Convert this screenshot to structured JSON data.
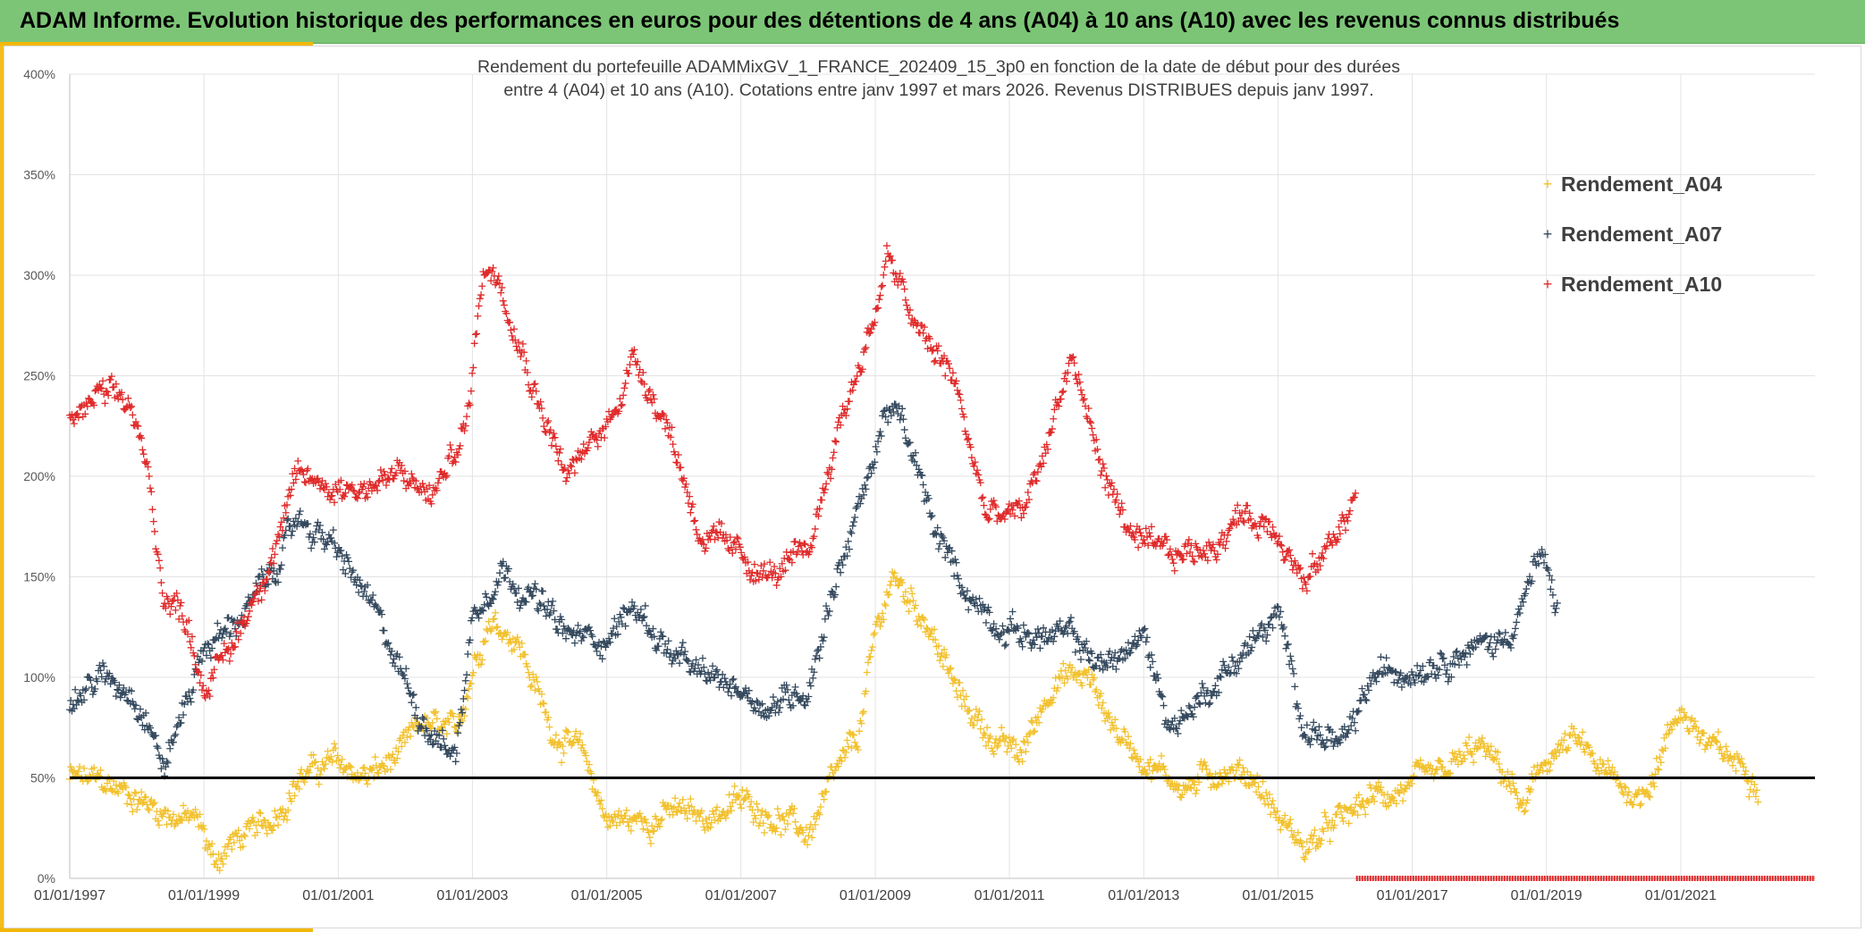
{
  "page": {
    "title": "ADAM Informe. Evolution historique des performances en euros pour des détentions de 4 ans (A04) à 10 ans (A10) avec les revenus connus distribués"
  },
  "chart_data": {
    "type": "scatter",
    "subtitle_line1": "Rendement du portefeuille ADAMMixGV_1_FRANCE_202409_15_3p0  en fonction de la date de début pour des durées",
    "subtitle_line2": "entre 4 (A04) et 10 ans (A10). Cotations entre janv 1997 et mars 2026. Revenus DISTRIBUES depuis janv 1997.",
    "x_axis": {
      "type": "date",
      "min": "1997-01-01",
      "max": "2023-01-01",
      "tick_labels": [
        "01/01/1997",
        "01/01/1999",
        "01/01/2001",
        "01/01/2003",
        "01/01/2005",
        "01/01/2007",
        "01/01/2009",
        "01/01/2011",
        "01/01/2013",
        "01/01/2015",
        "01/01/2017",
        "01/01/2019",
        "01/01/2021"
      ],
      "tick_dates": [
        "1997-01-01",
        "1999-01-01",
        "2001-01-01",
        "2003-01-01",
        "2005-01-01",
        "2007-01-01",
        "2009-01-01",
        "2011-01-01",
        "2013-01-01",
        "2015-01-01",
        "2017-01-01",
        "2019-01-01",
        "2021-01-01"
      ]
    },
    "y_axis": {
      "min": 0,
      "max": 400,
      "unit": "%",
      "tick_values": [
        0,
        50,
        100,
        150,
        200,
        250,
        300,
        350,
        400
      ],
      "tick_labels": [
        "0%",
        "50%",
        "100%",
        "150%",
        "200%",
        "250%",
        "300%",
        "350%",
        "400%"
      ]
    },
    "reference_line": {
      "y": 50,
      "color": "#000000"
    },
    "marker_band": {
      "y": 0,
      "x_start": "2016-03-01",
      "x_end": "2023-01-01",
      "color": "#E02020"
    },
    "grid": true,
    "legend_position": "top-right",
    "series": [
      {
        "name": "Rendement_A04",
        "color": "#F2C12E",
        "end": "2022-03-01",
        "points": [
          [
            "1997-01-01",
            50
          ],
          [
            "1997-06-01",
            48
          ],
          [
            "1997-12-01",
            42
          ],
          [
            "1998-06-01",
            33
          ],
          [
            "1998-12-01",
            28
          ],
          [
            "1999-03-01",
            8
          ],
          [
            "1999-06-01",
            18
          ],
          [
            "1999-12-01",
            25
          ],
          [
            "2000-06-01",
            50
          ],
          [
            "2000-12-01",
            58
          ],
          [
            "2001-06-01",
            50
          ],
          [
            "2001-12-01",
            60
          ],
          [
            "2002-04-01",
            77
          ],
          [
            "2002-10-01",
            70
          ],
          [
            "2003-01-01",
            105
          ],
          [
            "2003-04-01",
            130
          ],
          [
            "2003-09-01",
            120
          ],
          [
            "2004-03-01",
            75
          ],
          [
            "2004-09-01",
            60
          ],
          [
            "2005-01-01",
            30
          ],
          [
            "2005-06-01",
            28
          ],
          [
            "2006-01-01",
            33
          ],
          [
            "2006-06-01",
            30
          ],
          [
            "2007-01-01",
            38
          ],
          [
            "2007-06-01",
            33
          ],
          [
            "2008-01-01",
            22
          ],
          [
            "2008-06-01",
            50
          ],
          [
            "2008-10-01",
            70
          ],
          [
            "2009-01-01",
            120
          ],
          [
            "2009-04-01",
            150
          ],
          [
            "2009-10-01",
            130
          ],
          [
            "2010-04-01",
            90
          ],
          [
            "2010-10-01",
            70
          ],
          [
            "2011-03-01",
            60
          ],
          [
            "2011-09-01",
            100
          ],
          [
            "2012-03-01",
            100
          ],
          [
            "2012-09-01",
            70
          ],
          [
            "2013-03-01",
            55
          ],
          [
            "2013-09-01",
            45
          ],
          [
            "2014-03-01",
            55
          ],
          [
            "2014-09-01",
            50
          ],
          [
            "2015-01-01",
            30
          ],
          [
            "2015-06-01",
            15
          ],
          [
            "2016-01-01",
            30
          ],
          [
            "2016-06-01",
            40
          ],
          [
            "2017-01-01",
            45
          ],
          [
            "2017-06-01",
            50
          ],
          [
            "2018-01-01",
            65
          ],
          [
            "2018-06-01",
            50
          ],
          [
            "2018-09-01",
            33
          ],
          [
            "2019-01-01",
            60
          ],
          [
            "2019-06-01",
            68
          ],
          [
            "2019-12-01",
            50
          ],
          [
            "2020-06-01",
            40
          ],
          [
            "2021-01-01",
            85
          ],
          [
            "2021-06-01",
            65
          ],
          [
            "2022-01-01",
            55
          ],
          [
            "2022-03-01",
            50
          ]
        ]
      },
      {
        "name": "Rendement_A07",
        "color": "#34495E",
        "end": "2019-03-01",
        "points": [
          [
            "1997-01-01",
            85
          ],
          [
            "1997-06-01",
            100
          ],
          [
            "1997-12-01",
            95
          ],
          [
            "1998-03-01",
            80
          ],
          [
            "1998-06-01",
            55
          ],
          [
            "1998-10-01",
            90
          ],
          [
            "1999-01-01",
            115
          ],
          [
            "1999-06-01",
            125
          ],
          [
            "2000-01-01",
            150
          ],
          [
            "2000-06-01",
            180
          ],
          [
            "2000-12-01",
            165
          ],
          [
            "2001-06-01",
            140
          ],
          [
            "2001-12-01",
            105
          ],
          [
            "2002-04-01",
            80
          ],
          [
            "2002-10-01",
            60
          ],
          [
            "2003-01-01",
            130
          ],
          [
            "2003-06-01",
            155
          ],
          [
            "2003-12-01",
            140
          ],
          [
            "2004-06-01",
            120
          ],
          [
            "2005-01-01",
            120
          ],
          [
            "2005-06-01",
            135
          ],
          [
            "2006-01-01",
            110
          ],
          [
            "2006-06-01",
            100
          ],
          [
            "2007-01-01",
            95
          ],
          [
            "2007-06-01",
            85
          ],
          [
            "2008-01-01",
            95
          ],
          [
            "2008-06-01",
            150
          ],
          [
            "2008-12-01",
            200
          ],
          [
            "2009-03-01",
            235
          ],
          [
            "2009-06-01",
            225
          ],
          [
            "2009-12-01",
            170
          ],
          [
            "2010-06-01",
            140
          ],
          [
            "2010-12-01",
            125
          ],
          [
            "2011-06-01",
            120
          ],
          [
            "2011-12-01",
            120
          ],
          [
            "2012-06-01",
            105
          ],
          [
            "2013-01-01",
            120
          ],
          [
            "2013-06-01",
            75
          ],
          [
            "2014-01-01",
            95
          ],
          [
            "2014-06-01",
            110
          ],
          [
            "2015-01-01",
            130
          ],
          [
            "2015-06-01",
            75
          ],
          [
            "2016-01-01",
            65
          ],
          [
            "2016-06-01",
            100
          ],
          [
            "2017-01-01",
            105
          ],
          [
            "2017-06-01",
            110
          ],
          [
            "2018-01-01",
            115
          ],
          [
            "2018-06-01",
            120
          ],
          [
            "2018-12-01",
            160
          ],
          [
            "2019-03-01",
            135
          ]
        ]
      },
      {
        "name": "Rendement_A10",
        "color": "#E02A2A",
        "end": "2016-03-01",
        "points": [
          [
            "1997-01-01",
            225
          ],
          [
            "1997-06-01",
            240
          ],
          [
            "1997-12-01",
            235
          ],
          [
            "1998-03-01",
            200
          ],
          [
            "1998-06-01",
            140
          ],
          [
            "1998-10-01",
            130
          ],
          [
            "1999-01-01",
            95
          ],
          [
            "1999-06-01",
            115
          ],
          [
            "2000-01-01",
            160
          ],
          [
            "2000-06-01",
            200
          ],
          [
            "2000-12-01",
            195
          ],
          [
            "2001-06-01",
            195
          ],
          [
            "2001-12-01",
            200
          ],
          [
            "2002-06-01",
            190
          ],
          [
            "2002-12-01",
            225
          ],
          [
            "2003-03-01",
            305
          ],
          [
            "2003-06-01",
            300
          ],
          [
            "2003-12-01",
            245
          ],
          [
            "2004-06-01",
            200
          ],
          [
            "2005-01-01",
            225
          ],
          [
            "2005-06-01",
            260
          ],
          [
            "2005-12-01",
            225
          ],
          [
            "2006-06-01",
            170
          ],
          [
            "2007-01-01",
            160
          ],
          [
            "2007-06-01",
            150
          ],
          [
            "2008-01-01",
            160
          ],
          [
            "2008-06-01",
            220
          ],
          [
            "2009-01-01",
            280
          ],
          [
            "2009-03-01",
            310
          ],
          [
            "2009-09-01",
            270
          ],
          [
            "2010-03-01",
            250
          ],
          [
            "2010-09-01",
            180
          ],
          [
            "2011-03-01",
            180
          ],
          [
            "2011-06-01",
            200
          ],
          [
            "2011-12-01",
            260
          ],
          [
            "2012-06-01",
            200
          ],
          [
            "2012-12-01",
            165
          ],
          [
            "2013-06-01",
            160
          ],
          [
            "2014-01-01",
            165
          ],
          [
            "2014-06-01",
            180
          ],
          [
            "2015-01-01",
            175
          ],
          [
            "2015-06-01",
            145
          ],
          [
            "2016-01-01",
            180
          ],
          [
            "2016-03-01",
            190
          ]
        ]
      }
    ]
  }
}
